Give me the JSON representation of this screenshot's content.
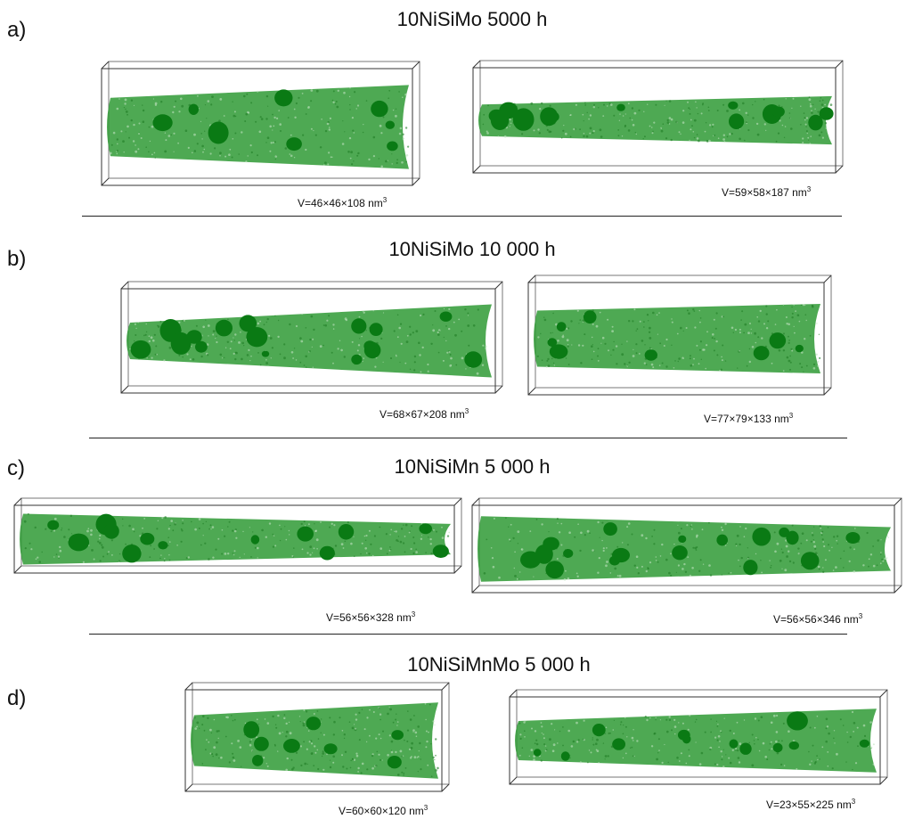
{
  "colors": {
    "matrix": "#2f9a35",
    "cluster": "#0a7a14",
    "box": "#333333",
    "separator": "#222222"
  },
  "panels": [
    {
      "letter": "a)",
      "title": "10NiSiMo 5000 h",
      "samples": [
        {
          "volume": "V=46×46×108 nm",
          "unit_sup": "3"
        },
        {
          "volume": "V=59×58×187 nm",
          "unit_sup": "3"
        }
      ]
    },
    {
      "letter": "b)",
      "title": "10NiSiMo 10 000 h",
      "samples": [
        {
          "volume": "V=68×67×208 nm",
          "unit_sup": "3"
        },
        {
          "volume": "V=77×79×133 nm",
          "unit_sup": "3"
        }
      ]
    },
    {
      "letter": "c)",
      "title": "10NiSiMn 5 000 h",
      "samples": [
        {
          "volume": "V=56×56×328 nm",
          "unit_sup": "3"
        },
        {
          "volume": "V=56×56×346 nm",
          "unit_sup": "3"
        }
      ]
    },
    {
      "letter": "d)",
      "title": "10NiSiMnMo 5 000 h",
      "samples": [
        {
          "volume": "V=60×60×120 nm",
          "unit_sup": "3"
        },
        {
          "volume": "V=23×55×225 nm",
          "unit_sup": "3"
        }
      ]
    }
  ]
}
